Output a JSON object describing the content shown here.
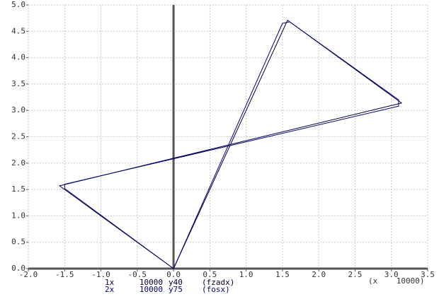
{
  "chart_data": {
    "type": "line",
    "xlabel": "(x    10000)",
    "xlim": [
      -2,
      3.5
    ],
    "ylim": [
      0,
      5
    ],
    "xticks": [
      {
        "value": -2,
        "label": "-2.0"
      },
      {
        "value": -1.5,
        "label": "-1.5"
      },
      {
        "value": -1,
        "label": "-1.0"
      },
      {
        "value": -0.5,
        "label": "-0.5"
      },
      {
        "value": 0,
        "label": "0.0"
      },
      {
        "value": 0.5,
        "label": "0.5"
      },
      {
        "value": 1,
        "label": "1.0"
      },
      {
        "value": 1.5,
        "label": "1.5"
      },
      {
        "value": 2,
        "label": "2.0"
      },
      {
        "value": 2.5,
        "label": "2.5"
      },
      {
        "value": 3,
        "label": "3.0"
      },
      {
        "value": 3.5,
        "label": "3.5"
      }
    ],
    "yticks": [
      {
        "value": 0,
        "label": "0.0"
      },
      {
        "value": 0.5,
        "label": "0.5"
      },
      {
        "value": 1,
        "label": "1.0"
      },
      {
        "value": 1.5,
        "label": "1.5"
      },
      {
        "value": 2,
        "label": "2.0"
      },
      {
        "value": 2.5,
        "label": "2.5"
      },
      {
        "value": 3,
        "label": "3.0"
      },
      {
        "value": 3.5,
        "label": "3.5"
      },
      {
        "value": 4,
        "label": "4.0"
      },
      {
        "value": 4.5,
        "label": "4.5"
      },
      {
        "value": 5,
        "label": "5.0"
      }
    ],
    "grid": true,
    "series": [
      {
        "name": "(fzadx)",
        "id": "1x",
        "scale": "10000",
        "ylabel": "y40",
        "color": "#000033",
        "x": [
          0,
          1.57,
          3.14,
          -1.57,
          0
        ],
        "values": [
          0,
          4.71,
          3.14,
          1.57,
          0
        ]
      },
      {
        "name": "(fosx)",
        "id": "2x",
        "scale": "10000",
        "ylabel": "y75",
        "color": "#000080",
        "x": [
          0,
          1.5,
          1.6,
          3.1,
          3.1,
          -1.5,
          -1.5,
          0
        ],
        "values": [
          0,
          4.65,
          4.68,
          3.2,
          3.08,
          1.6,
          1.52,
          0
        ]
      }
    ]
  }
}
